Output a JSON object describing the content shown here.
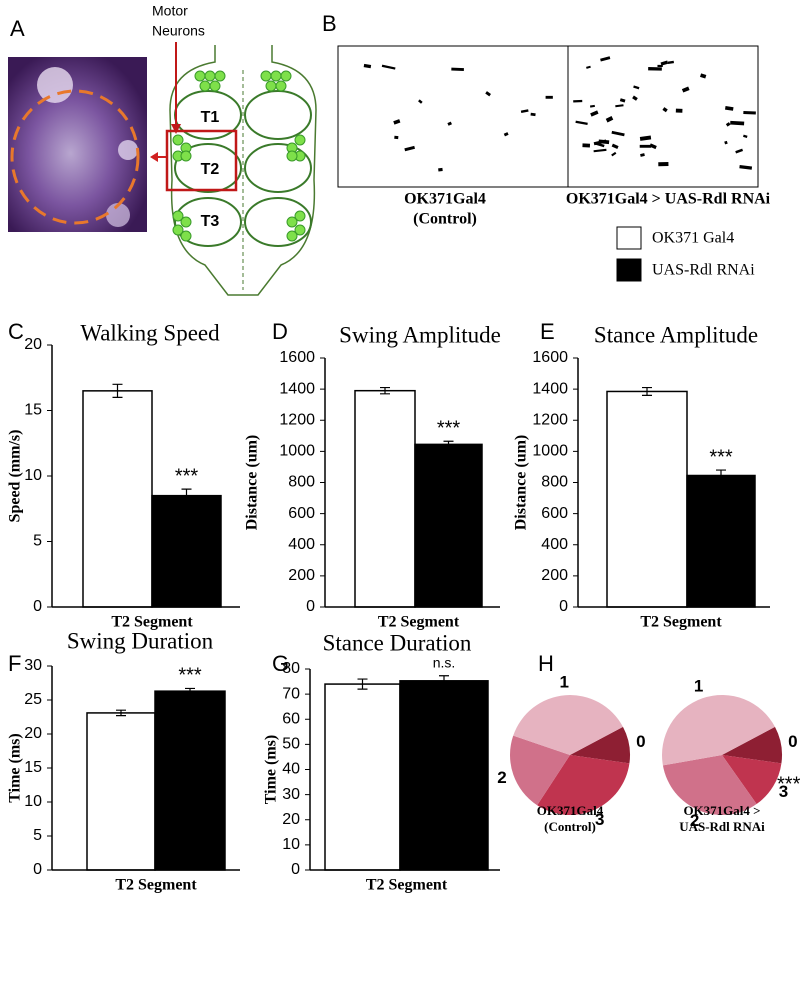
{
  "figure": {
    "panel_a": {
      "label": "A",
      "callout": [
        "Motor",
        "Neurons"
      ],
      "segments": [
        "T1",
        "T2",
        "T3"
      ]
    },
    "panel_b": {
      "label": "B",
      "captions": [
        [
          "OK371Gal4",
          "(Control)"
        ],
        [
          "OK371Gal4  > UAS-Rdl RNAi"
        ]
      ]
    }
  },
  "chart_data": [
    {
      "type": "bar",
      "panel": "C",
      "title": "Walking Speed",
      "y_label": "Speed (mm/s)",
      "categories": [
        "T2 Segment"
      ],
      "series": [
        {
          "name": "OK371 Gal4",
          "color": "#ffffff",
          "values": [
            16.5
          ],
          "errors": [
            0.5
          ]
        },
        {
          "name": "UAS-Rdl RNAi",
          "color": "#000000",
          "values": [
            8.5
          ],
          "errors": [
            0.5
          ]
        }
      ],
      "annotation": "***",
      "ylim": [
        0,
        20
      ],
      "yticks": [
        0,
        5,
        10,
        15,
        20
      ]
    },
    {
      "type": "bar",
      "panel": "D",
      "title": "Swing Amplitude",
      "y_label": "Distance (um)",
      "categories": [
        "T2 Segment"
      ],
      "series": [
        {
          "name": "OK371 Gal4",
          "color": "#ffffff",
          "values": [
            1390
          ],
          "errors": [
            20
          ]
        },
        {
          "name": "UAS-Rdl RNAi",
          "color": "#000000",
          "values": [
            1045
          ],
          "errors": [
            20
          ]
        }
      ],
      "annotation": "***",
      "ylim": [
        0,
        1600
      ],
      "yticks": [
        0,
        200,
        400,
        600,
        800,
        1000,
        1200,
        1400,
        1600
      ]
    },
    {
      "type": "bar",
      "panel": "E",
      "title": "Stance Amplitude",
      "y_label": "Distance (um)",
      "categories": [
        "T2 Segment"
      ],
      "series": [
        {
          "name": "OK371 Gal4",
          "color": "#ffffff",
          "values": [
            1385
          ],
          "errors": [
            25
          ]
        },
        {
          "name": "UAS-Rdl RNAi",
          "color": "#000000",
          "values": [
            845
          ],
          "errors": [
            35
          ]
        }
      ],
      "annotation": "***",
      "ylim": [
        0,
        1600
      ],
      "yticks": [
        0,
        200,
        400,
        600,
        800,
        1000,
        1200,
        1400,
        1600
      ]
    },
    {
      "type": "bar",
      "panel": "F",
      "title": "Swing Duration",
      "y_label": "Time (ms)",
      "categories": [
        "T2 Segment"
      ],
      "series": [
        {
          "name": "OK371 Gal4",
          "color": "#ffffff",
          "values": [
            23.1
          ],
          "errors": [
            0.4
          ]
        },
        {
          "name": "UAS-Rdl RNAi",
          "color": "#000000",
          "values": [
            26.3
          ],
          "errors": [
            0.4
          ]
        }
      ],
      "annotation": "***",
      "ylim": [
        0,
        30
      ],
      "yticks": [
        0,
        5,
        10,
        15,
        20,
        25,
        30
      ]
    },
    {
      "type": "bar",
      "panel": "G",
      "title": "Stance Duration",
      "y_label": "Time (ms)",
      "categories": [
        "T2 Segment"
      ],
      "series": [
        {
          "name": "OK371 Gal4",
          "color": "#ffffff",
          "values": [
            74
          ],
          "errors": [
            2
          ]
        },
        {
          "name": "UAS-Rdl RNAi",
          "color": "#000000",
          "values": [
            75.3
          ],
          "errors": [
            2
          ]
        }
      ],
      "annotation": "n.s.",
      "ylim": [
        0,
        80
      ],
      "yticks": [
        0,
        10,
        20,
        30,
        40,
        50,
        60,
        70,
        80
      ]
    },
    {
      "type": "pie",
      "panel": "H",
      "caption": [
        "OK371Gal4",
        "(Control)"
      ],
      "categories": [
        "0",
        "1",
        "2",
        "3"
      ],
      "colors": [
        "#8e1f33",
        "#e6b3c0",
        "#d0718a",
        "#c0344f"
      ],
      "values": [
        10,
        37,
        21,
        32
      ]
    },
    {
      "type": "pie",
      "caption": [
        "OK371Gal4 >",
        "UAS-Rdl RNAi"
      ],
      "categories": [
        "0",
        "1",
        "2",
        "3"
      ],
      "colors": [
        "#8e1f33",
        "#e6b3c0",
        "#d0718a",
        "#c0344f"
      ],
      "values": [
        10,
        45,
        32,
        13
      ],
      "annotation": "***"
    }
  ]
}
